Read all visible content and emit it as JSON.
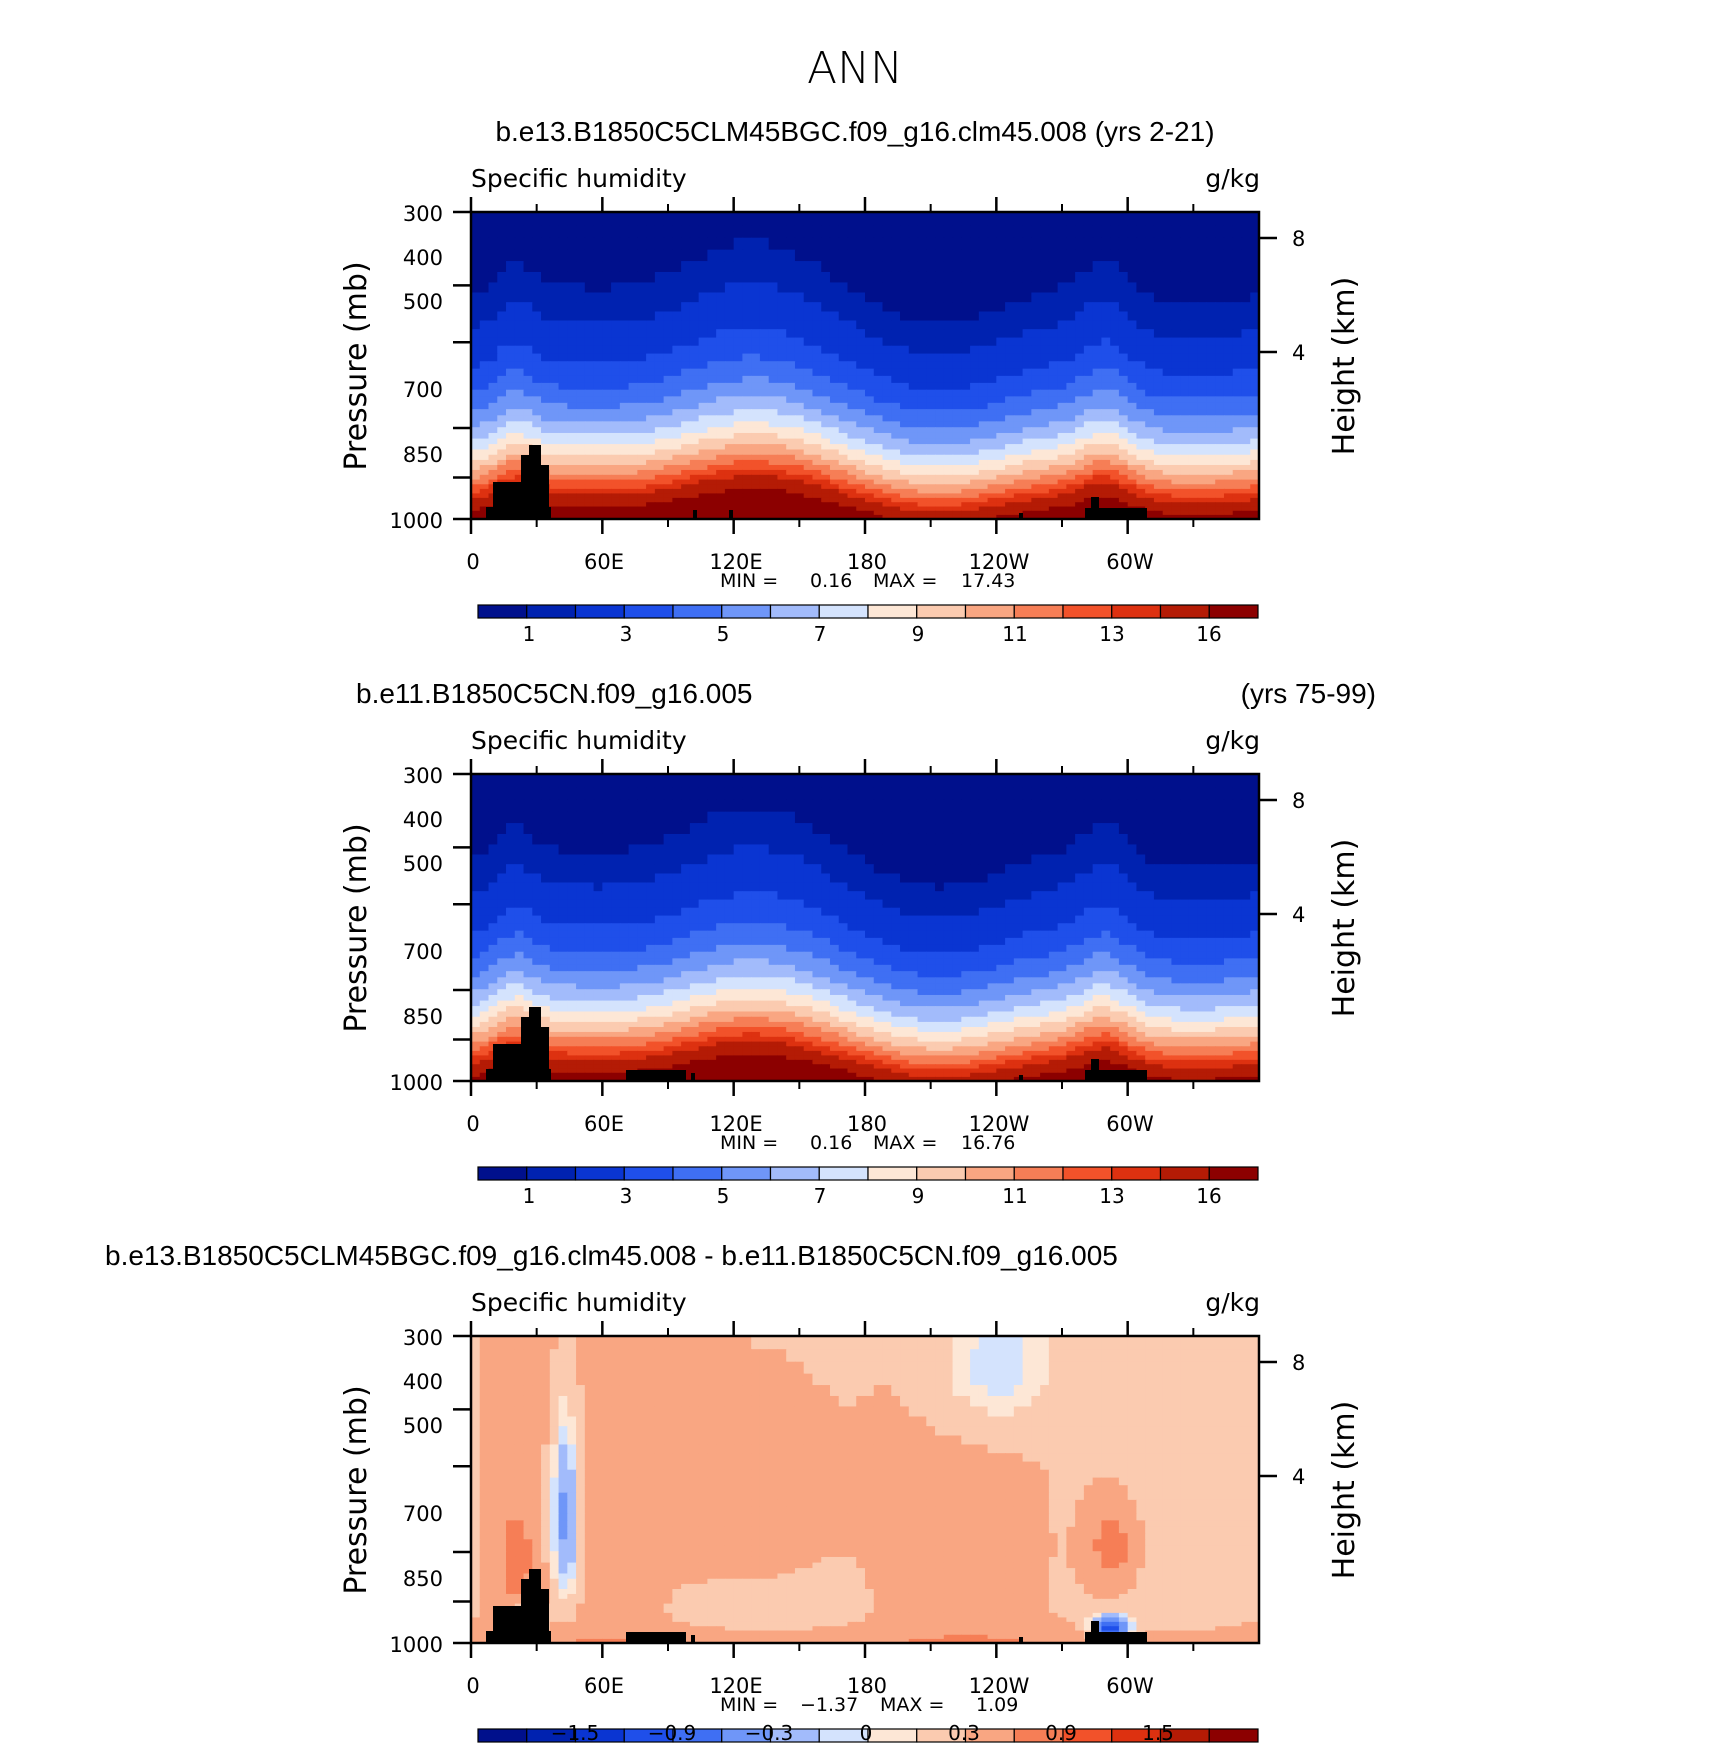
{
  "figure": {
    "season_title": "ANN"
  },
  "chart_data": [
    {
      "type": "heatmap",
      "title": "b.e13.B1850C5CLM45BGC.f09_g16.clm45.008 (yrs 2-21)",
      "title_right": "",
      "variable": "Specific humidity",
      "units": "g/kg",
      "ylabel": "Pressure (mb)",
      "ylabel_right": "Height (km)",
      "yticks": [
        300,
        400,
        500,
        700,
        850,
        1000
      ],
      "ylim": [
        1000,
        300
      ],
      "yticks_right": [
        8,
        4
      ],
      "xticks": [
        "0",
        "60E",
        "120E",
        "180",
        "120W",
        "60W"
      ],
      "xlim": [
        0,
        360
      ],
      "min_label": "MIN =",
      "min_value": "0.16",
      "max_label": "MAX =",
      "max_value": "17.43",
      "colorbar_labels": [
        "1",
        "3",
        "5",
        "7",
        "9",
        "11",
        "13",
        "16"
      ],
      "colorbar_colors": [
        "#00108c",
        "#0022b0",
        "#0a35d2",
        "#1f4fea",
        "#3f6ff3",
        "#6f96f8",
        "#a2bbfb",
        "#d4e3fd",
        "#fde7d6",
        "#fbcbb0",
        "#f9a682",
        "#f67e56",
        "#f2522a",
        "#dd3110",
        "#b41b05",
        "#8c0000"
      ],
      "grid": false
    },
    {
      "type": "heatmap",
      "title": "b.e11.B1850C5CN.f09_g16.005",
      "title_right": "(yrs 75-99)",
      "variable": "Specific humidity",
      "units": "g/kg",
      "ylabel": "Pressure (mb)",
      "ylabel_right": "Height (km)",
      "yticks": [
        300,
        400,
        500,
        700,
        850,
        1000
      ],
      "ylim": [
        1000,
        300
      ],
      "yticks_right": [
        8,
        4
      ],
      "xticks": [
        "0",
        "60E",
        "120E",
        "180",
        "120W",
        "60W"
      ],
      "xlim": [
        0,
        360
      ],
      "min_label": "MIN =",
      "min_value": "0.16",
      "max_label": "MAX =",
      "max_value": "16.76",
      "colorbar_labels": [
        "1",
        "3",
        "5",
        "7",
        "9",
        "11",
        "13",
        "16"
      ],
      "colorbar_colors": [
        "#00108c",
        "#0022b0",
        "#0a35d2",
        "#1f4fea",
        "#3f6ff3",
        "#6f96f8",
        "#a2bbfb",
        "#d4e3fd",
        "#fde7d6",
        "#fbcbb0",
        "#f9a682",
        "#f67e56",
        "#f2522a",
        "#dd3110",
        "#b41b05",
        "#8c0000"
      ],
      "grid": false
    },
    {
      "type": "heatmap",
      "title": "b.e13.B1850C5CLM45BGC.f09_g16.clm45.008 - b.e11.B1850C5CN.f09_g16.005",
      "title_right": "",
      "variable": "Specific humidity",
      "units": "g/kg",
      "ylabel": "Pressure (mb)",
      "ylabel_right": "Height (km)",
      "yticks": [
        300,
        400,
        500,
        700,
        850,
        1000
      ],
      "ylim": [
        1000,
        300
      ],
      "yticks_right": [
        8,
        4
      ],
      "xticks": [
        "0",
        "60E",
        "120E",
        "180",
        "120W",
        "60W"
      ],
      "xlim": [
        0,
        360
      ],
      "min_label": "MIN =",
      "min_value": "−1.37",
      "max_label": "MAX =",
      "max_value": "1.09",
      "colorbar_labels": [
        "−1.5",
        "−0.9",
        "−0.3",
        "0",
        "0.3",
        "0.9",
        "1.5"
      ],
      "colorbar_colors": [
        "#00108c",
        "#0022b0",
        "#0a35d2",
        "#1f4fea",
        "#3f6ff3",
        "#6f96f8",
        "#a2bbfb",
        "#d4e3fd",
        "#fde7d6",
        "#fbcbb0",
        "#f9a682",
        "#f67e56",
        "#f2522a",
        "#dd3110",
        "#b41b05",
        "#8c0000"
      ],
      "grid": false
    }
  ]
}
